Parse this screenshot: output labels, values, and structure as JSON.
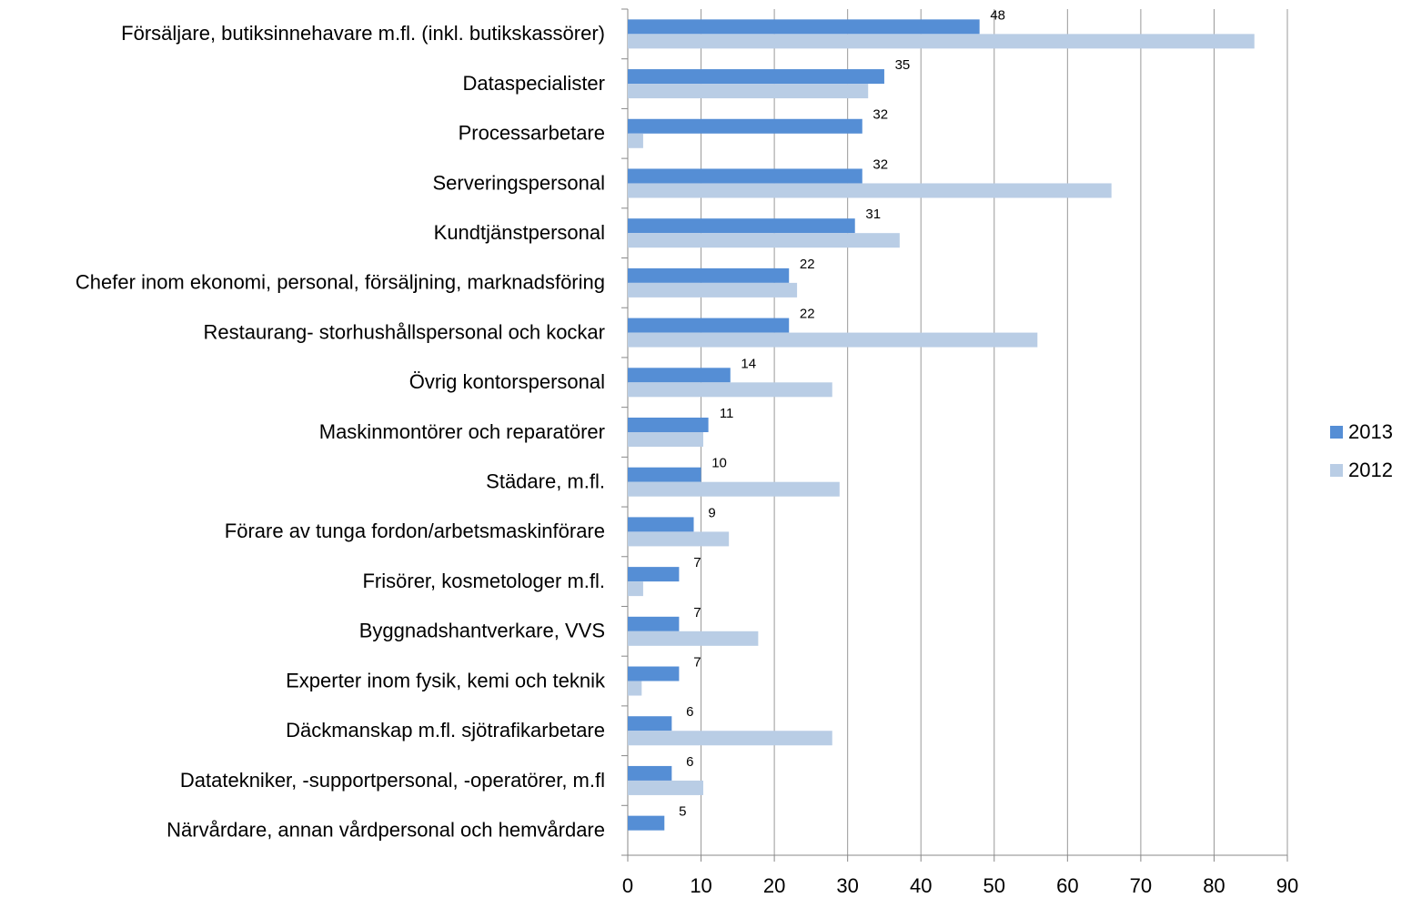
{
  "chart_data": {
    "type": "barh",
    "categories": [
      "Försäljare, butiksinnehavare m.fl. (inkl. butikskassörer)",
      "Dataspecialister",
      "Processarbetare",
      "Serveringspersonal",
      "Kundtjänstpersonal",
      "Chefer inom ekonomi, personal, försäljning, marknadsföring",
      "Restaurang- storhushållspersonal och kockar",
      "Övrig kontorspersonal",
      "Maskinmontörer och reparatörer",
      "Städare, m.fl.",
      "Förare av tunga fordon/arbetsmaskinförare",
      "Frisörer, kosmetologer m.fl.",
      "Byggnadshantverkare, VVS",
      "Experter inom fysik, kemi och teknik",
      "Däckmanskap m.fl. sjötrafikarbetare",
      "Datatekniker, -supportpersonal, -operatörer, m.fl",
      "Närvårdare, annan vårdpersonal och hemvårdare"
    ],
    "series": [
      {
        "name": "2013",
        "color": "#558ed5",
        "values": [
          48,
          35,
          32,
          32,
          31,
          22,
          22,
          14,
          11,
          10,
          9,
          7,
          7,
          7,
          6,
          6,
          5
        ],
        "data_labels": true
      },
      {
        "name": "2012",
        "color": "#b9cde5",
        "values": [
          85.5,
          32.8,
          2.1,
          66,
          37.1,
          23.1,
          55.9,
          27.9,
          10.3,
          28.9,
          13.8,
          2.1,
          17.8,
          1.9,
          27.9,
          10.3,
          null
        ]
      }
    ],
    "xlim": [
      0,
      90
    ],
    "xticks": [
      0,
      10,
      20,
      30,
      40,
      50,
      60,
      70,
      80,
      90
    ],
    "grid": true,
    "legend": "right"
  }
}
